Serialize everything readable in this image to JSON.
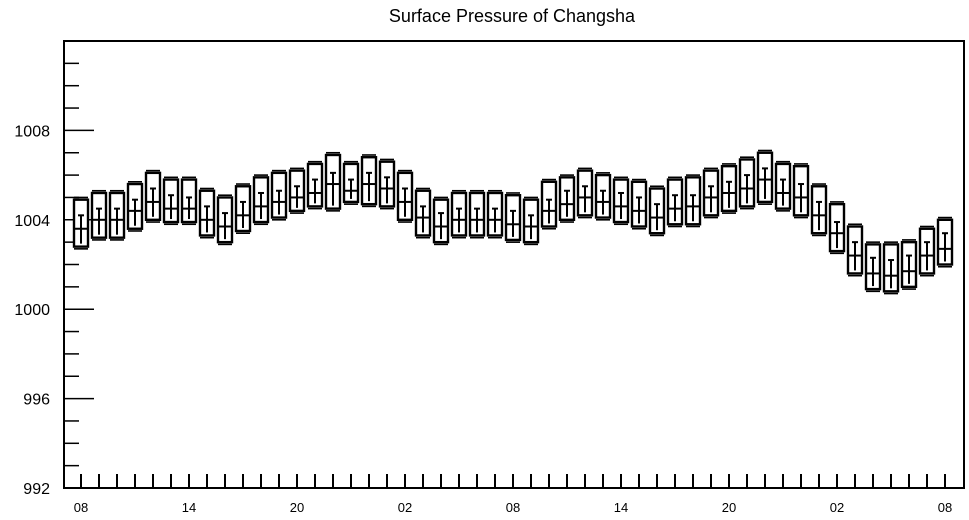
{
  "chart_data": {
    "type": "boxplot",
    "title": "Surface Pressure of Changsha",
    "xlabel": "",
    "ylabel": "",
    "ylim": [
      992,
      1012
    ],
    "yticks": [
      992,
      996,
      1000,
      1004,
      1008
    ],
    "xtick_labels": [
      "08",
      "14",
      "20",
      "02",
      "08",
      "14",
      "20",
      "02",
      "08"
    ],
    "xtick_index": [
      0,
      6,
      12,
      18,
      24,
      30,
      36,
      42,
      48
    ],
    "grid": false,
    "legend": "none",
    "colors": {
      "line": "#000000",
      "box_fill": "#ffffff"
    },
    "series": [
      {
        "lower_q": [
          1002.8,
          1003.2,
          1003.2,
          1003.6,
          1004.0,
          1003.9,
          1003.9,
          1003.3,
          1003.0,
          1003.5,
          1003.9,
          1004.1,
          1004.4,
          1004.6,
          1004.5,
          1004.8,
          1004.7,
          1004.6,
          1004.0,
          1003.3,
          1003.0,
          1003.3,
          1003.3,
          1003.3,
          1003.1,
          1003.0,
          1003.7,
          1004.0,
          1004.2,
          1004.1,
          1003.9,
          1003.7,
          1003.4,
          1003.8,
          1003.8,
          1004.2,
          1004.4,
          1004.6,
          1004.8,
          1004.5,
          1004.2,
          1003.4,
          1002.6,
          1001.6,
          1000.9,
          1000.8,
          1001.0,
          1001.6,
          1002.0
        ],
        "upper_q": [
          1004.9,
          1005.2,
          1005.2,
          1005.6,
          1006.1,
          1005.8,
          1005.8,
          1005.3,
          1005.0,
          1005.5,
          1005.9,
          1006.1,
          1006.2,
          1006.5,
          1006.9,
          1006.5,
          1006.8,
          1006.6,
          1006.1,
          1005.3,
          1004.9,
          1005.2,
          1005.2,
          1005.2,
          1005.1,
          1004.9,
          1005.7,
          1005.9,
          1006.2,
          1006.0,
          1005.8,
          1005.7,
          1005.4,
          1005.8,
          1005.9,
          1006.2,
          1006.4,
          1006.7,
          1007.0,
          1006.5,
          1006.4,
          1005.5,
          1004.7,
          1003.7,
          1002.9,
          1002.9,
          1003.0,
          1003.6,
          1004.0
        ],
        "median": [
          1003.6,
          1004.0,
          1004.0,
          1004.4,
          1004.8,
          1004.5,
          1004.5,
          1004.0,
          1003.7,
          1004.2,
          1004.6,
          1004.8,
          1005.0,
          1005.2,
          1005.6,
          1005.3,
          1005.6,
          1005.4,
          1004.8,
          1004.1,
          1003.7,
          1004.0,
          1004.0,
          1004.0,
          1003.8,
          1003.7,
          1004.4,
          1004.7,
          1005.0,
          1004.8,
          1004.6,
          1004.4,
          1004.1,
          1004.5,
          1004.6,
          1005.0,
          1005.2,
          1005.4,
          1005.8,
          1005.2,
          1005.0,
          1004.2,
          1003.4,
          1002.4,
          1001.6,
          1001.5,
          1001.7,
          1002.4,
          1002.7
        ],
        "mean": [
          1004.2,
          1004.5,
          1004.5,
          1004.9,
          1005.4,
          1005.1,
          1005.0,
          1004.6,
          1004.3,
          1004.8,
          1005.2,
          1005.3,
          1005.5,
          1005.8,
          1006.1,
          1005.8,
          1006.1,
          1005.9,
          1005.4,
          1004.6,
          1004.3,
          1004.5,
          1004.5,
          1004.5,
          1004.4,
          1004.2,
          1004.9,
          1005.3,
          1005.5,
          1005.3,
          1005.2,
          1005.0,
          1004.7,
          1005.1,
          1005.1,
          1005.5,
          1005.7,
          1006.0,
          1006.3,
          1005.8,
          1005.6,
          1004.8,
          1003.9,
          1003.0,
          1002.3,
          1002.2,
          1002.4,
          1003.0,
          1003.4
        ],
        "max": [
          1005.0,
          1005.3,
          1005.3,
          1005.7,
          1006.2,
          1005.9,
          1005.9,
          1005.4,
          1005.1,
          1005.6,
          1006.0,
          1006.2,
          1006.3,
          1006.6,
          1007.0,
          1006.6,
          1006.9,
          1006.7,
          1006.2,
          1005.4,
          1005.0,
          1005.3,
          1005.3,
          1005.3,
          1005.2,
          1005.0,
          1005.8,
          1006.0,
          1006.3,
          1006.1,
          1005.9,
          1005.8,
          1005.5,
          1005.9,
          1006.0,
          1006.3,
          1006.5,
          1006.8,
          1007.1,
          1006.6,
          1006.5,
          1005.6,
          1004.8,
          1003.8,
          1003.0,
          1003.0,
          1003.1,
          1003.7,
          1004.1
        ],
        "min": [
          1002.7,
          1003.1,
          1003.1,
          1003.5,
          1003.9,
          1003.8,
          1003.8,
          1003.2,
          1002.9,
          1003.4,
          1003.8,
          1004.0,
          1004.3,
          1004.5,
          1004.4,
          1004.7,
          1004.6,
          1004.5,
          1003.9,
          1003.2,
          1002.9,
          1003.2,
          1003.2,
          1003.2,
          1003.0,
          1002.9,
          1003.6,
          1003.9,
          1004.1,
          1004.0,
          1003.8,
          1003.6,
          1003.3,
          1003.7,
          1003.7,
          1004.1,
          1004.3,
          1004.5,
          1004.7,
          1004.4,
          1004.1,
          1003.3,
          1002.5,
          1001.5,
          1000.8,
          1000.7,
          1000.9,
          1001.5,
          1001.9
        ]
      }
    ]
  }
}
